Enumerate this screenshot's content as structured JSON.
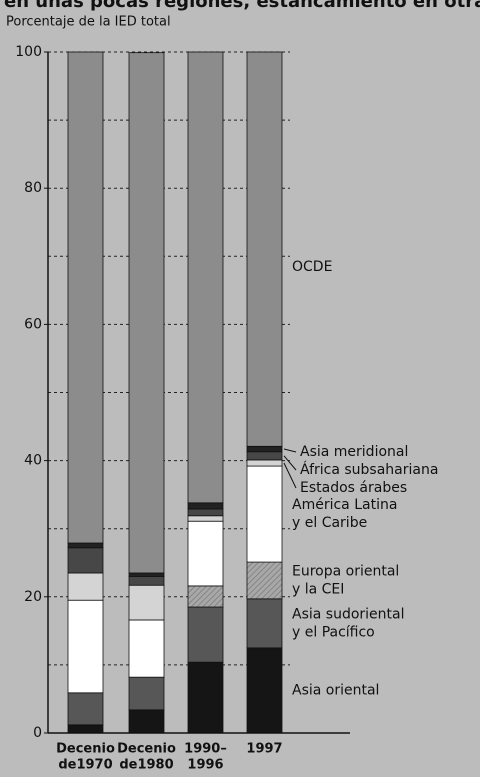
{
  "chart_data": {
    "type": "stacked_bar",
    "title": "en unas pocas regiones, estancamiento en otras",
    "y_label": "Porcentaje de la IED total",
    "categories": [
      [
        "Decenio",
        "de1970"
      ],
      [
        "Decenio",
        "de1980"
      ],
      [
        "1990–",
        "1996"
      ],
      [
        "1997"
      ]
    ],
    "series": [
      {
        "name": "Asia oriental",
        "color": "#151515",
        "values": [
          1.2,
          3.4,
          10.4,
          12.5
        ]
      },
      {
        "name": "Asia sudoriental y el Pacífico",
        "color": "#575757",
        "values": [
          4.7,
          4.8,
          8.1,
          7.2
        ]
      },
      {
        "name": "Europa oriental y la CEI",
        "color": "hatch",
        "values": [
          0,
          0,
          3.1,
          5.4
        ]
      },
      {
        "name": "América Latina y el Caribe",
        "color": "#ffffff",
        "values": [
          13.6,
          8.4,
          9.5,
          14.1
        ]
      },
      {
        "name": "Estados árabes",
        "color": "#d4d4d4",
        "values": [
          4.0,
          5.1,
          0.8,
          0.9
        ]
      },
      {
        "name": "África subsahariana",
        "color": "#474747",
        "values": [
          3.7,
          1.3,
          1.0,
          1.2
        ]
      },
      {
        "name": "Asia meridional",
        "color": "#222222",
        "values": [
          0.7,
          0.5,
          0.9,
          0.8
        ]
      },
      {
        "name": "OCDE",
        "color": "#8c8c8c",
        "values": [
          72.1,
          76.4,
          66.2,
          57.9
        ]
      }
    ],
    "ylim": [
      0,
      100
    ],
    "yticks": [
      0,
      20,
      40,
      60,
      80,
      100
    ],
    "minor_yticks": [
      10,
      30,
      50,
      70,
      90
    ],
    "grid": true
  }
}
